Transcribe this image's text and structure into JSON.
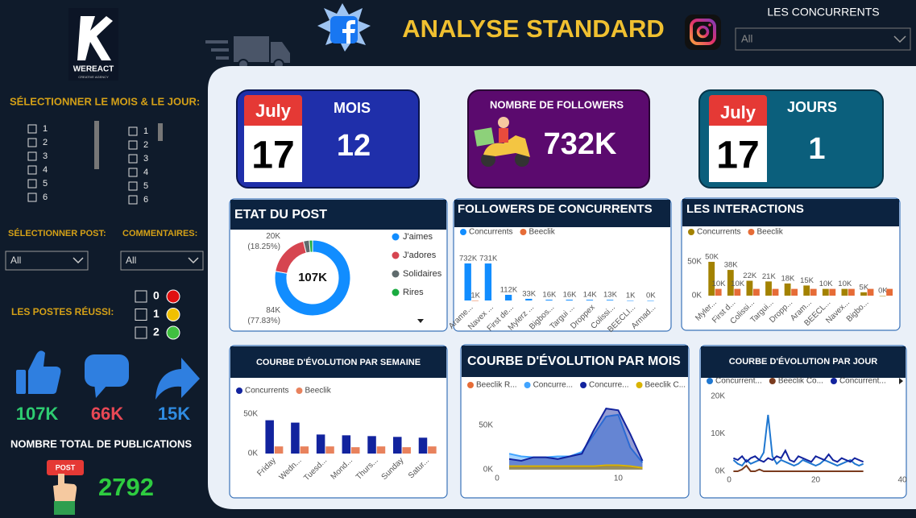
{
  "header": {
    "logo": "WEREACT",
    "logo_sub": "CREATIVE AGENCY",
    "title": "ANALYSE STANDARD",
    "competitor_filter": {
      "label": "LES CONCURRENTS",
      "value": "All"
    }
  },
  "sidebar": {
    "date_filter": {
      "label": "SÉLECTIONNER LE MOIS & LE JOUR:",
      "months": [
        "1",
        "2",
        "3",
        "4",
        "5",
        "6"
      ],
      "days": [
        "1",
        "2",
        "3",
        "4",
        "5",
        "6"
      ]
    },
    "post_filter": {
      "label": "SÉLECTIONNER POST:",
      "value": "All"
    },
    "comment_filter": {
      "label": "COMMENTAIRES:",
      "value": "All"
    },
    "success_filter": {
      "label": "LES POSTES RÉUSSI:",
      "options": [
        "0",
        "1",
        "2"
      ]
    },
    "reactions": {
      "likes": "107K",
      "comments": "66K",
      "shares": "15K"
    },
    "publications": {
      "label": "NOMBRE TOTAL DE PUBLICATIONS",
      "sign": "POST",
      "value": "2792"
    }
  },
  "kpis": [
    {
      "cal_month": "July",
      "cal_day": "17",
      "label": "MOIS",
      "value": "12"
    },
    {
      "label": "NOMBRE DE FOLLOWERS",
      "value": "732K"
    },
    {
      "cal_month": "July",
      "cal_day": "17",
      "label": "JOURS",
      "value": "1"
    }
  ],
  "chart_data": [
    {
      "type": "pie",
      "title": "ETAT DU POST",
      "categories": [
        "J'aimes",
        "J'adores",
        "Solidaires",
        "Rires"
      ],
      "values": [
        77.83,
        18.25,
        2.5,
        1.42
      ],
      "value_labels": [
        "84K (77.83%)",
        "20K (18.25%)",
        null,
        null
      ],
      "colors": [
        "#118dff",
        "#d64550",
        "#5f6b6d",
        "#1aab40"
      ],
      "center_label": "107K"
    },
    {
      "type": "bar",
      "title": "FOLLOWERS DE CONCURRENTS",
      "categories": [
        "Arame...",
        "Navex ...",
        "First de...",
        "Mylerz ...",
        "Bigbos...",
        "Targui ...",
        "Droppex",
        "Colissi...",
        "BEECLI...",
        "Armad..."
      ],
      "series": [
        {
          "name": "Concurrents",
          "color": "#118dff",
          "values": [
            732000,
            731000,
            112000,
            33000,
            16000,
            16000,
            14000,
            13000,
            1000,
            0
          ],
          "value_labels": [
            "732K",
            "731K",
            "112K",
            "33K",
            "16K",
            "16K",
            "14K",
            "13K",
            "1K",
            "0K"
          ]
        },
        {
          "name": "Beeclik",
          "color": "#e66c37",
          "values": [
            1000,
            null,
            null,
            null,
            null,
            null,
            null,
            null,
            null,
            null
          ],
          "value_labels": [
            "1K",
            null,
            null,
            null,
            null,
            null,
            null,
            null,
            null,
            null
          ]
        }
      ]
    },
    {
      "type": "bar",
      "title": "LES INTERACTIONS",
      "categories": [
        "Myler...",
        "First d...",
        "Colissi...",
        "Targui...",
        "Dropp...",
        "Aram...",
        "BEECL...",
        "Navex...",
        "Bigbo...",
        null
      ],
      "series": [
        {
          "name": "Concurrents",
          "color": "#a38200",
          "values": [
            50000,
            38000,
            22000,
            21000,
            18000,
            15000,
            10000,
            10000,
            5000,
            0
          ],
          "value_labels": [
            "50K",
            "38K",
            "22K",
            "21K",
            "18K",
            "15K",
            "10K",
            "10K",
            "5K",
            "0K"
          ]
        },
        {
          "name": "Beeclik",
          "color": "#e66c37",
          "values": [
            10000,
            10000,
            10000,
            10000,
            10000,
            10000,
            10000,
            10000,
            10000,
            10000
          ],
          "value_labels": [
            "10K",
            "10K",
            null,
            null,
            null,
            null,
            null,
            null,
            null,
            null
          ]
        }
      ],
      "ylim": [
        0,
        75000
      ],
      "yticks": [
        {
          "value": 0,
          "label": "0K"
        },
        {
          "value": 50000,
          "label": "50K"
        }
      ]
    },
    {
      "type": "bar",
      "title": "COURBE D'ÉVOLUTION PAR SEMAINE",
      "categories": [
        "Friday",
        "Wedn...",
        "Tuesd...",
        "Mond...",
        "Thurs...",
        "Sunday",
        "Satur..."
      ],
      "series": [
        {
          "name": "Concurrents",
          "color": "#12239e",
          "values": [
            42000,
            39000,
            24000,
            23000,
            22000,
            21000,
            20000
          ]
        },
        {
          "name": "Beeclik",
          "color": "#e8825d",
          "values": [
            9000,
            9000,
            9000,
            8000,
            9000,
            8000,
            9000
          ]
        }
      ],
      "ylim": [
        0,
        65000
      ],
      "yticks": [
        {
          "value": 0,
          "label": "0K"
        },
        {
          "value": 50000,
          "label": "50K"
        }
      ]
    },
    {
      "type": "area",
      "title": "COURBE D'ÉVOLUTION PAR MOIS",
      "x": [
        1,
        2,
        3,
        4,
        5,
        6,
        7,
        8,
        9,
        10,
        11,
        12
      ],
      "series": [
        {
          "name": "Beeclik R...",
          "color": "#e66c37",
          "values": [
            3000,
            3000,
            3000,
            3000,
            3000,
            3000,
            3000,
            3000,
            4000,
            4000,
            3000,
            2000
          ]
        },
        {
          "name": "Concurre...",
          "color": "#41a4ff",
          "values": [
            18000,
            15000,
            14000,
            14000,
            15000,
            15000,
            20000,
            40000,
            60000,
            62000,
            25000,
            8000
          ]
        },
        {
          "name": "Concurre...",
          "color": "#12239e",
          "values": [
            12000,
            10000,
            14000,
            14000,
            12000,
            15000,
            18000,
            45000,
            69000,
            67000,
            40000,
            10000
          ]
        },
        {
          "name": "Beeclik C...",
          "color": "#d9b300",
          "values": [
            4000,
            4000,
            4000,
            4000,
            4000,
            4000,
            4000,
            4000,
            5000,
            5000,
            4000,
            2000
          ]
        }
      ],
      "xlim": [
        0,
        12.3
      ],
      "xticks": [
        0,
        10
      ],
      "ylim": [
        0,
        80000
      ],
      "yticks": [
        {
          "value": 0,
          "label": "0K"
        },
        {
          "value": 50000,
          "label": "50K"
        }
      ]
    },
    {
      "type": "line",
      "title": "COURBE D'ÉVOLUTION PAR JOUR",
      "x": [
        1,
        2,
        3,
        4,
        5,
        6,
        7,
        8,
        9,
        10,
        11,
        12,
        13,
        14,
        15,
        16,
        17,
        18,
        19,
        20,
        21,
        22,
        23,
        24,
        25,
        26,
        27,
        28,
        29,
        30,
        31
      ],
      "series": [
        {
          "name": "Concurrent...",
          "color": "#1f77d0",
          "values": [
            3000,
            2000,
            1500,
            3000,
            2000,
            2500,
            3000,
            5000,
            15000,
            4000,
            2000,
            3000,
            2500,
            2000,
            1500,
            2000,
            3000,
            2500,
            2000,
            1500,
            2000,
            3000,
            2500,
            2000,
            1500,
            2000,
            2500,
            3000,
            2000,
            1500,
            2000
          ]
        },
        {
          "name": "Beeclik Co...",
          "color": "#7a3b1e",
          "values": [
            0,
            0,
            500,
            1500,
            0,
            0,
            500,
            0,
            0,
            0,
            0,
            0,
            0,
            0,
            0,
            0,
            0,
            0,
            0,
            0,
            0,
            0,
            0,
            0,
            0,
            0,
            0,
            0,
            0,
            0,
            0
          ]
        },
        {
          "name": "Concurrent...",
          "color": "#12239e",
          "values": [
            3500,
            3000,
            4000,
            2500,
            3500,
            4000,
            3000,
            2500,
            3500,
            3000,
            4000,
            3500,
            5500,
            3000,
            2500,
            4000,
            3500,
            3000,
            2500,
            4000,
            3500,
            3000,
            4500,
            3000,
            2500,
            3500,
            3000,
            2500,
            3500,
            3000,
            2500
          ]
        }
      ],
      "xlim": [
        0,
        40
      ],
      "xticks": [
        0,
        20,
        40
      ],
      "ylim": [
        0,
        21000
      ],
      "yticks": [
        {
          "value": 0,
          "label": "0K"
        },
        {
          "value": 10000,
          "label": "10K"
        },
        {
          "value": 20000,
          "label": "20K"
        }
      ]
    }
  ]
}
